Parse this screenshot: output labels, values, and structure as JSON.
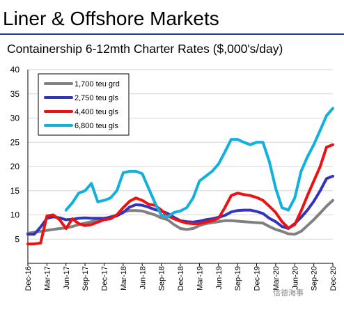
{
  "slide_title": "Liner & Offshore Markets",
  "watermark": "信德海事",
  "chart_data": {
    "type": "line",
    "title": "Containership 6-12mth Charter Rates ($,000's/day)",
    "xlabel": "",
    "ylabel": "",
    "ylim": [
      0,
      40
    ],
    "yticks": [
      5,
      10,
      15,
      20,
      25,
      30,
      35,
      40
    ],
    "x_tick_labels": [
      "Dec-16",
      "Mar-17",
      "Jun-17",
      "Sep-17",
      "Dec-17",
      "Mar-18",
      "Jun-18",
      "Sep-18",
      "Dec-18",
      "Mar-19",
      "Jun-19",
      "Sep-19",
      "Dec-19",
      "Mar-20",
      "Jun-20",
      "Sep-20",
      "Dec-20"
    ],
    "x_months": [
      "Dec-16",
      "Jan-17",
      "Feb-17",
      "Mar-17",
      "Apr-17",
      "May-17",
      "Jun-17",
      "Jul-17",
      "Aug-17",
      "Sep-17",
      "Oct-17",
      "Nov-17",
      "Dec-17",
      "Jan-18",
      "Feb-18",
      "Mar-18",
      "Apr-18",
      "May-18",
      "Jun-18",
      "Jul-18",
      "Aug-18",
      "Sep-18",
      "Oct-18",
      "Nov-18",
      "Dec-18",
      "Jan-19",
      "Feb-19",
      "Mar-19",
      "Apr-19",
      "May-19",
      "Jun-19",
      "Jul-19",
      "Aug-19",
      "Sep-19",
      "Oct-19",
      "Nov-19",
      "Dec-19",
      "Jan-20",
      "Feb-20",
      "Mar-20",
      "Apr-20",
      "May-20",
      "Jun-20",
      "Jul-20",
      "Aug-20",
      "Sep-20",
      "Oct-20",
      "Nov-20",
      "Dec-20"
    ],
    "grid": true,
    "legend_position": "top-left",
    "series": [
      {
        "name": "1,700 teu grd",
        "color": "#808080",
        "values": [
          6.2,
          6.4,
          6.6,
          6.8,
          7.0,
          7.2,
          7.3,
          7.6,
          8.0,
          8.3,
          8.6,
          8.9,
          9.2,
          9.6,
          10.0,
          10.6,
          10.9,
          10.9,
          10.8,
          10.4,
          10.0,
          9.4,
          9.0,
          8.0,
          7.2,
          7.0,
          7.2,
          7.8,
          8.2,
          8.4,
          8.6,
          8.8,
          8.8,
          8.7,
          8.6,
          8.5,
          8.4,
          8.3,
          7.6,
          7.0,
          6.6,
          6.1,
          6.0,
          6.6,
          7.8,
          9.0,
          10.4,
          11.8,
          13.0
        ]
      },
      {
        "name": "2,750 teu gls",
        "color": "#3333bb",
        "values": [
          6.0,
          6.0,
          7.5,
          9.3,
          9.6,
          9.4,
          9.0,
          9.1,
          9.3,
          9.4,
          9.3,
          9.3,
          9.3,
          9.5,
          9.8,
          10.5,
          11.6,
          12.1,
          12.0,
          11.6,
          11.1,
          10.8,
          10.3,
          9.5,
          8.8,
          8.6,
          8.5,
          8.7,
          9.0,
          9.2,
          9.5,
          9.9,
          10.6,
          10.9,
          11.0,
          11.0,
          10.7,
          10.3,
          9.3,
          8.6,
          7.6,
          7.2,
          8.2,
          9.5,
          11.0,
          12.8,
          15.0,
          17.5,
          18.0
        ]
      },
      {
        "name": "4,400 teu gls",
        "color": "#ee1111",
        "values": [
          4.0,
          4.0,
          4.2,
          9.8,
          10.0,
          9.0,
          7.2,
          9.2,
          8.2,
          7.8,
          8.0,
          8.5,
          9.0,
          9.2,
          10.0,
          11.5,
          12.8,
          13.5,
          13.0,
          12.2,
          12.0,
          11.0,
          9.8,
          9.2,
          8.7,
          8.3,
          8.2,
          8.2,
          8.5,
          8.8,
          9.3,
          11.5,
          14.0,
          14.5,
          14.2,
          14.0,
          13.6,
          13.0,
          11.8,
          10.5,
          8.6,
          7.3,
          8.0,
          10.8,
          14.0,
          17.0,
          20.0,
          24.0,
          24.5
        ]
      },
      {
        "name": "6,800 teu gls",
        "color": "#11b0dd",
        "values": [
          null,
          null,
          null,
          null,
          null,
          null,
          11.0,
          12.5,
          14.5,
          15.0,
          16.5,
          12.7,
          13.0,
          13.5,
          15.0,
          18.7,
          19.0,
          19.0,
          18.5,
          15.5,
          12.5,
          10.0,
          9.6,
          10.5,
          10.8,
          11.5,
          13.5,
          17.0,
          18.0,
          19.0,
          20.5,
          23.0,
          25.6,
          25.6,
          25.0,
          24.5,
          25.0,
          25.0,
          21.0,
          15.5,
          11.5,
          11.0,
          13.5,
          19.0,
          22.0,
          24.5,
          27.5,
          30.5,
          32.0
        ]
      }
    ]
  }
}
